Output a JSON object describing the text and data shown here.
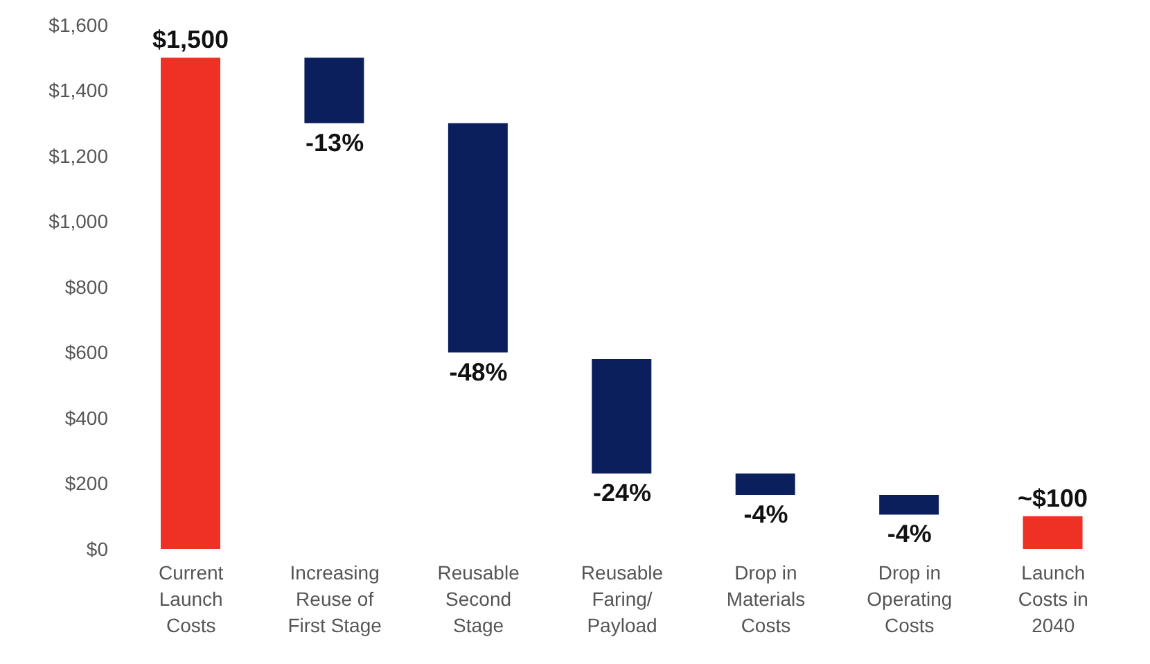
{
  "chart_data": {
    "type": "bar",
    "categories": [
      "Current Launch Costs",
      "Increasing Reuse of First Stage",
      "Reusable Second Stage",
      "Reusable Faring/ Payload",
      "Drop in Materials Costs",
      "Drop in Operating Costs",
      "Launch Costs in 2040"
    ],
    "values": [
      1500,
      -200,
      -700,
      -350,
      -65,
      -60,
      100
    ],
    "base": [
      0,
      1500,
      1300,
      580,
      230,
      165,
      0
    ],
    "colors": [
      "#ee3124",
      "#0a1f5c",
      "#0a1f5c",
      "#0a1f5c",
      "#0a1f5c",
      "#0a1f5c",
      "#ee3124"
    ],
    "value_labels": [
      "$1,500",
      null,
      null,
      null,
      null,
      null,
      "~$100"
    ],
    "annotations": [
      {
        "text": "-13%",
        "x": "Increasing Reuse of First Stage",
        "y": 1300
      },
      {
        "text": "-48%",
        "x": "Reusable Second Stage",
        "y": 600
      },
      {
        "text": "-24%",
        "x": "Reusable Faring/ Payload",
        "y": 230
      },
      {
        "text": "-4%",
        "x": "Drop in Materials Costs",
        "y": 165
      },
      {
        "text": "-4%",
        "x": "Drop in Operating Costs",
        "y": 105
      }
    ],
    "ylim": [
      0,
      1600
    ],
    "yticks": [
      {
        "value": 0,
        "label": "$0"
      },
      {
        "value": 200,
        "label": "$200"
      },
      {
        "value": 400,
        "label": "$400"
      },
      {
        "value": 600,
        "label": "$600"
      },
      {
        "value": 800,
        "label": "$800"
      },
      {
        "value": 1000,
        "label": "$1,000"
      },
      {
        "value": 1200,
        "label": "$1,200"
      },
      {
        "value": 1400,
        "label": "$1,400"
      },
      {
        "value": 1600,
        "label": "$1,600"
      }
    ],
    "grid": false,
    "legend": false
  }
}
